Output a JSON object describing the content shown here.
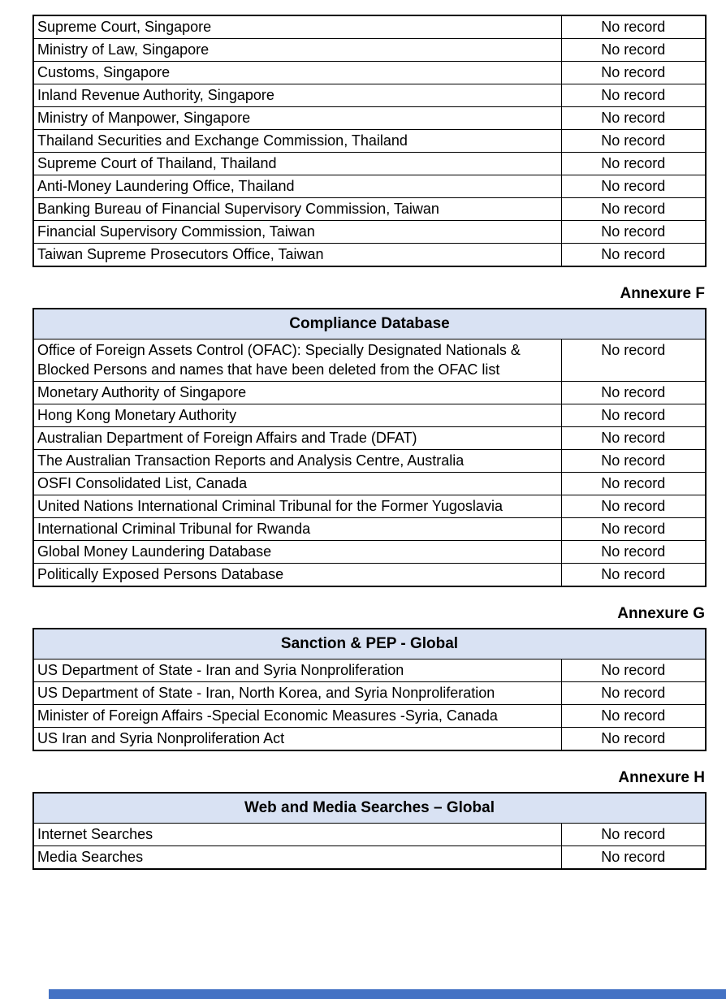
{
  "document": {
    "tables": [
      {
        "annexure_label": "",
        "title": "",
        "rows": [
          {
            "source": "Supreme Court, Singapore",
            "result": "No record"
          },
          {
            "source": "Ministry of Law, Singapore",
            "result": "No record"
          },
          {
            "source": "Customs, Singapore",
            "result": "No record"
          },
          {
            "source": "Inland Revenue Authority, Singapore",
            "result": "No record"
          },
          {
            "source": "Ministry of Manpower, Singapore",
            "result": "No record"
          },
          {
            "source": "Thailand Securities and Exchange Commission, Thailand",
            "result": "No record"
          },
          {
            "source": "Supreme Court of Thailand, Thailand",
            "result": "No record"
          },
          {
            "source": "Anti-Money Laundering Office, Thailand",
            "result": "No record"
          },
          {
            "source": "Banking Bureau of Financial Supervisory Commission, Taiwan",
            "result": "No record"
          },
          {
            "source": "Financial Supervisory Commission, Taiwan",
            "result": "No record"
          },
          {
            "source": "Taiwan Supreme Prosecutors Office, Taiwan",
            "result": "No record"
          }
        ]
      },
      {
        "annexure_label": "Annexure F",
        "title": "Compliance Database",
        "rows": [
          {
            "source": "Office of Foreign Assets Control (OFAC): Specially Designated Nationals & Blocked Persons and names that have been deleted from the OFAC list",
            "result": "No record"
          },
          {
            "source": "Monetary Authority of Singapore",
            "result": "No record"
          },
          {
            "source": "Hong Kong Monetary Authority",
            "result": "No record"
          },
          {
            "source": "Australian Department of Foreign Affairs and Trade (DFAT)",
            "result": "No record"
          },
          {
            "source": "The Australian Transaction Reports and Analysis Centre, Australia",
            "result": "No record"
          },
          {
            "source": "OSFI Consolidated List, Canada",
            "result": "No record"
          },
          {
            "source": "United Nations International Criminal Tribunal for the Former Yugoslavia",
            "result": "No record"
          },
          {
            "source": "International Criminal Tribunal for Rwanda",
            "result": "No record"
          },
          {
            "source": "Global Money Laundering Database",
            "result": "No record"
          },
          {
            "source": "Politically Exposed Persons Database",
            "result": "No record"
          }
        ]
      },
      {
        "annexure_label": "Annexure G",
        "title": "Sanction & PEP - Global",
        "rows": [
          {
            "source": "US Department of State - Iran and Syria Nonproliferation",
            "result": "No record"
          },
          {
            "source": "US Department of State - Iran, North Korea, and Syria Nonproliferation",
            "result": "No record"
          },
          {
            "source": "Minister of Foreign Affairs -Special Economic Measures -Syria, Canada",
            "result": "No record"
          },
          {
            "source": "US Iran and Syria Nonproliferation Act",
            "result": "No record"
          }
        ]
      },
      {
        "annexure_label": "Annexure H",
        "title": "Web and Media Searches – Global",
        "rows": [
          {
            "source": "Internet Searches",
            "result": "No record"
          },
          {
            "source": "Media Searches",
            "result": "No record"
          }
        ]
      }
    ]
  },
  "colors": {
    "table_header_bg": "#d9e2f3",
    "table_border": "#000000",
    "text": "#000000",
    "page_bg": "#ffffff",
    "bottom_band": "#4472c4"
  }
}
